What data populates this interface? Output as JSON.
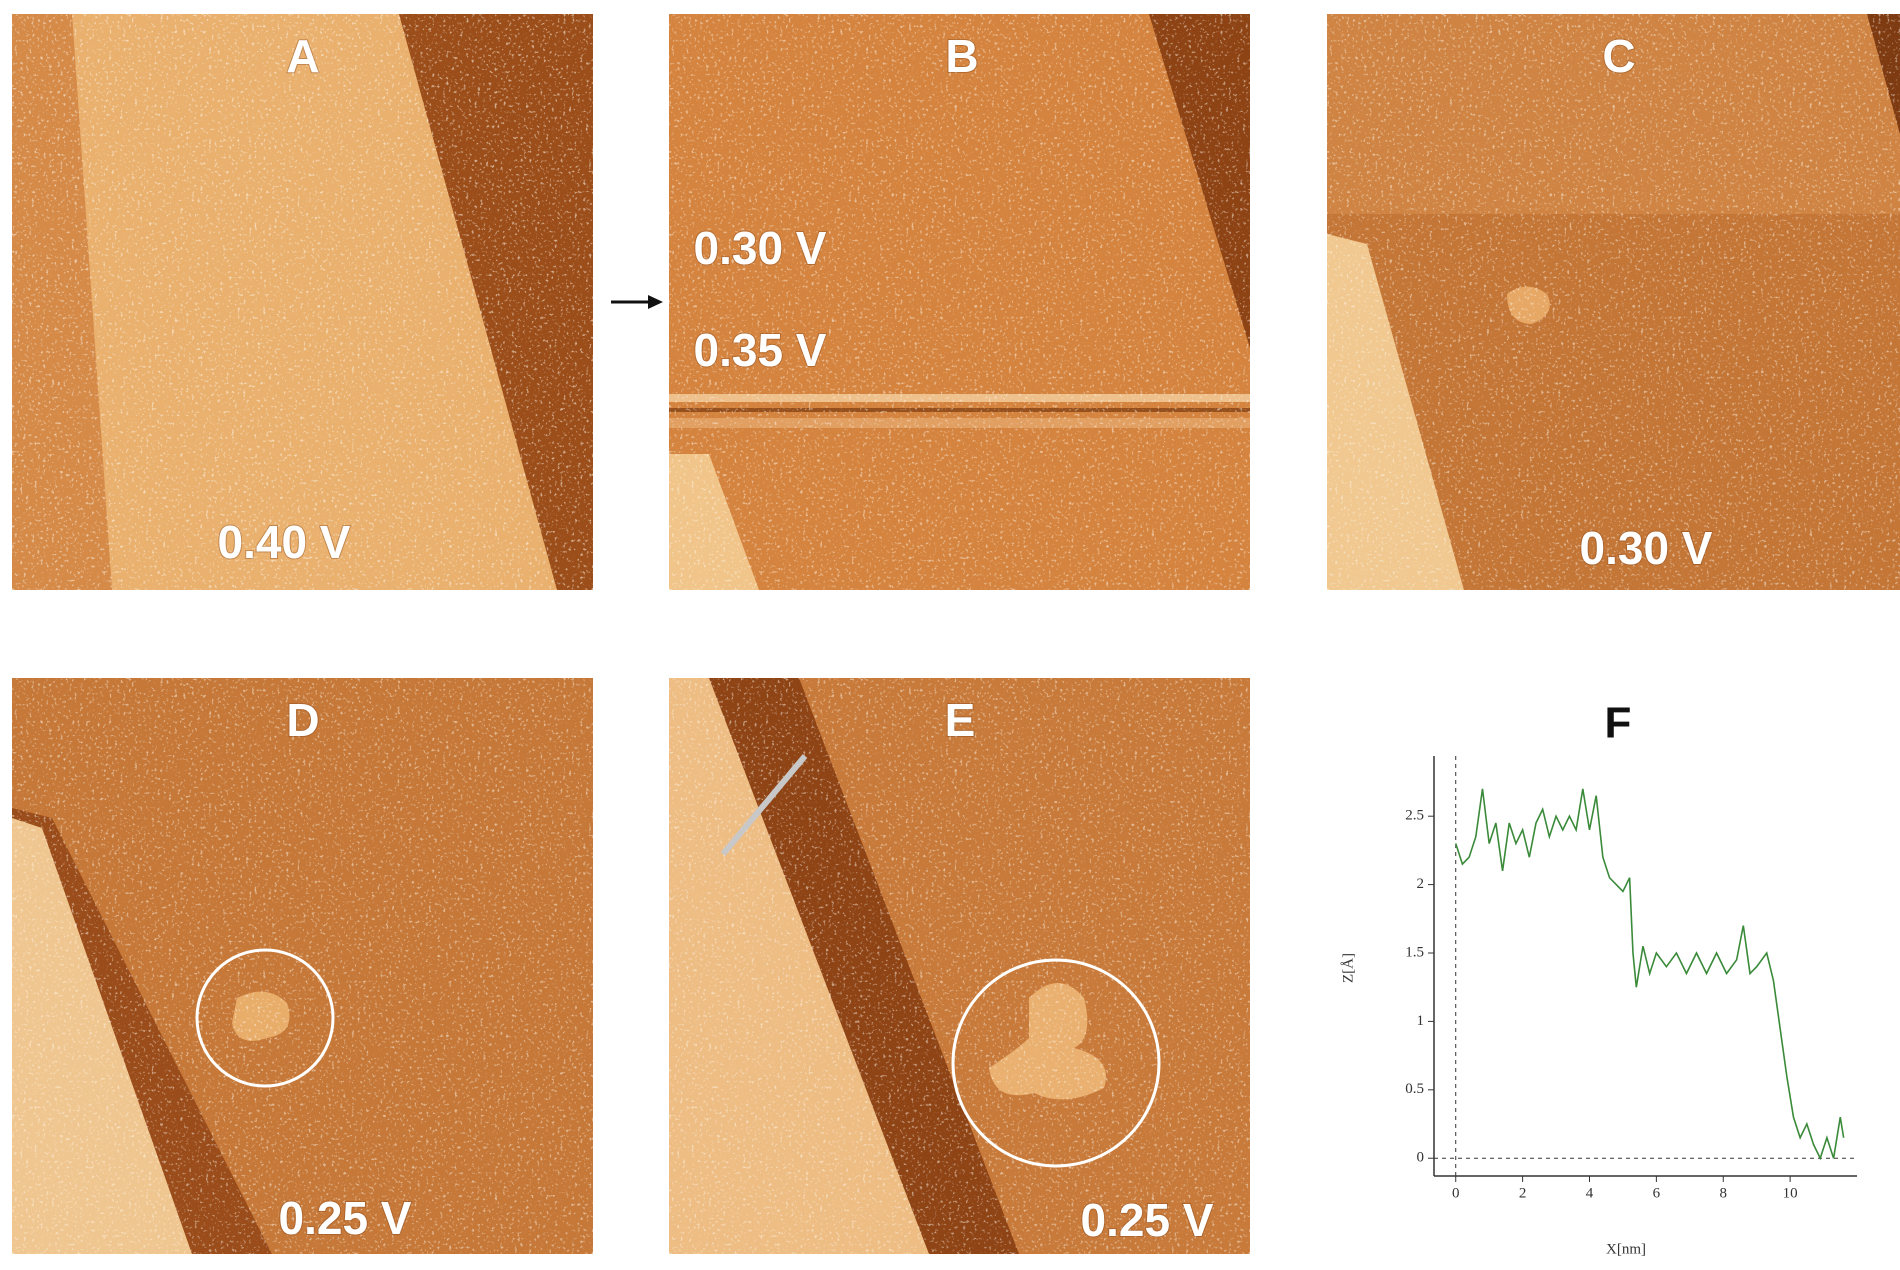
{
  "panels": [
    {
      "label": "A",
      "voltages": [
        "0.40 V"
      ]
    },
    {
      "label": "B",
      "voltages": [
        "0.30 V",
        "0.35 V"
      ]
    },
    {
      "label": "C",
      "voltages": [
        "0.30 V"
      ]
    },
    {
      "label": "D",
      "voltages": [
        "0.25 V"
      ]
    },
    {
      "label": "E",
      "voltages": [
        "0.25 V"
      ]
    }
  ],
  "chart_data": {
    "type": "line",
    "title": "F",
    "x_label": "X[nm]",
    "y_label": "Z[Å]",
    "x": [
      0,
      0.2,
      0.4,
      0.6,
      0.8,
      1.0,
      1.2,
      1.4,
      1.6,
      1.8,
      2.0,
      2.2,
      2.4,
      2.6,
      2.8,
      3.0,
      3.2,
      3.4,
      3.6,
      3.8,
      4.0,
      4.2,
      4.4,
      4.6,
      4.8,
      5.0,
      5.2,
      5.3,
      5.4,
      5.6,
      5.8,
      6.0,
      6.3,
      6.6,
      6.9,
      7.2,
      7.5,
      7.8,
      8.1,
      8.4,
      8.6,
      8.8,
      9.0,
      9.3,
      9.5,
      9.7,
      9.9,
      10.1,
      10.3,
      10.5,
      10.7,
      10.9,
      11.1,
      11.3,
      11.5,
      11.6
    ],
    "series": [
      {
        "color": "#3a8a3a",
        "values": [
          2.3,
          2.15,
          2.2,
          2.35,
          2.7,
          2.3,
          2.45,
          2.1,
          2.45,
          2.3,
          2.4,
          2.2,
          2.45,
          2.55,
          2.35,
          2.5,
          2.4,
          2.5,
          2.4,
          2.7,
          2.4,
          2.65,
          2.2,
          2.05,
          2.0,
          1.95,
          2.05,
          1.5,
          1.25,
          1.55,
          1.35,
          1.5,
          1.4,
          1.5,
          1.35,
          1.5,
          1.35,
          1.5,
          1.35,
          1.45,
          1.7,
          1.35,
          1.4,
          1.5,
          1.3,
          0.95,
          0.6,
          0.3,
          0.15,
          0.25,
          0.1,
          0.0,
          0.15,
          0.0,
          0.3,
          0.15
        ]
      }
    ],
    "xlim": [
      -0.65,
      12
    ],
    "ylim": [
      -0.13,
      2.94
    ],
    "xticks": [
      0,
      2,
      4,
      6,
      8,
      10
    ],
    "yticks": [
      0,
      0.5,
      1,
      1.5,
      2,
      2.5
    ]
  }
}
